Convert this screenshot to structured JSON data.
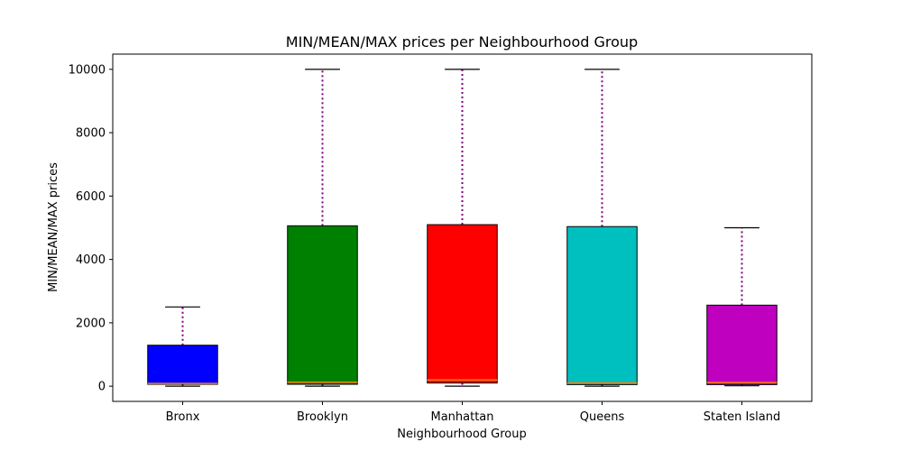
{
  "chart_data": {
    "type": "box",
    "title": "MIN/MEAN/MAX prices per Neighbourhood Group",
    "xlabel": "Neighbourhood Group",
    "ylabel": "MIN/MEAN/MAX prices",
    "categories": [
      "Bronx",
      "Brooklyn",
      "Manhattan",
      "Queens",
      "Staten Island"
    ],
    "ylim": [
      -480,
      10480
    ],
    "yticks": [
      0,
      2000,
      4000,
      6000,
      8000,
      10000
    ],
    "box_colors": [
      "#0000ff",
      "#008000",
      "#ff0000",
      "#00bfbf",
      "#bf00bf"
    ],
    "median_color": "#ff7f0e",
    "whisker_color": "#800080",
    "boxes": [
      {
        "name": "Bronx",
        "whisker_low": 0,
        "q1": 60,
        "median": 87,
        "q3": 1293,
        "whisker_high": 2500
      },
      {
        "name": "Brooklyn",
        "whisker_low": 0,
        "q1": 60,
        "median": 124,
        "q3": 5062,
        "whisker_high": 10000
      },
      {
        "name": "Manhattan",
        "whisker_low": 0,
        "q1": 100,
        "median": 197,
        "q3": 5098,
        "whisker_high": 10000
      },
      {
        "name": "Queens",
        "whisker_low": 0,
        "q1": 50,
        "median": 100,
        "q3": 5036,
        "whisker_high": 10000
      },
      {
        "name": "Staten Island",
        "whisker_low": 13,
        "q1": 50,
        "median": 115,
        "q3": 2557,
        "whisker_high": 5000
      }
    ]
  }
}
